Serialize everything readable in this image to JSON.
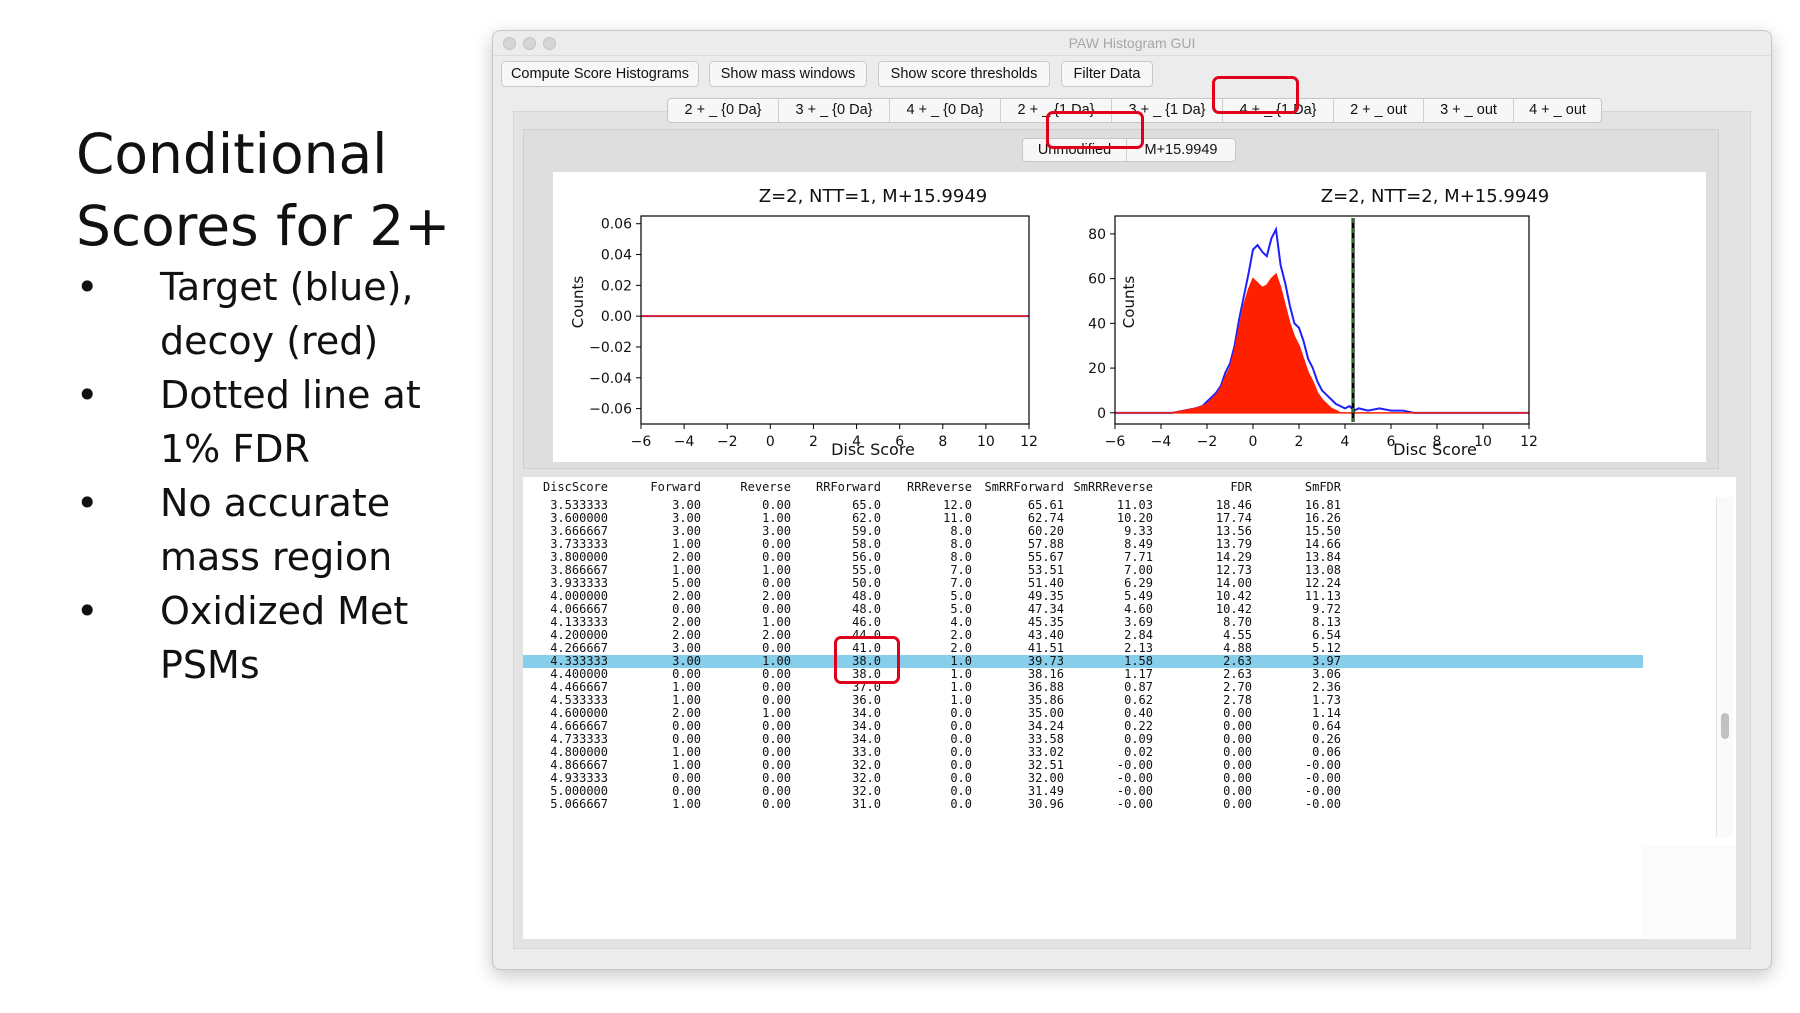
{
  "slide": {
    "title_lines": [
      "Conditional",
      "Scores for 2+"
    ],
    "bullet_symbol": "•",
    "bullets": [
      [
        "Target (blue),",
        "decoy (red)"
      ],
      [
        "Dotted line at",
        "1% FDR"
      ],
      [
        "No accurate",
        "mass region"
      ],
      [
        "Oxidized Met",
        "PSMs"
      ]
    ]
  },
  "window": {
    "title": "PAW Histogram GUI",
    "toolbar": [
      "Compute Score Histograms",
      "Show mass windows",
      "Show score thresholds",
      "Filter Data"
    ],
    "tabs": [
      "2 + _ {0 Da}",
      "3 + _ {0 Da}",
      "4 + _ {0 Da}",
      "2 + _ {1 Da}",
      "3 + _ {1 Da}",
      "4 + _ {1 Da}",
      "2 + _ out",
      "3 + _ out",
      "4 + _ out"
    ],
    "selected_tab": "2 + _ out",
    "subtabs": [
      "Unmodified",
      "M+15.9949"
    ],
    "selected_subtab": "M+15.9949"
  },
  "colors": {
    "target": "#1f1fff",
    "decoy": "#ff2000",
    "threshold": "#2ca02c",
    "highlight": "#e0001b",
    "selected_row": "#87ceeb"
  },
  "chart_data": [
    {
      "type": "line",
      "title": "Z=2, NTT=1, M+15.9949",
      "xlabel": "Disc Score",
      "ylabel": "Counts",
      "xlim": [
        -6,
        12
      ],
      "ylim": [
        -0.07,
        0.065
      ],
      "xticks": [
        "−6",
        "−4",
        "−2",
        "0",
        "2",
        "4",
        "6",
        "8",
        "10",
        "12"
      ],
      "yticks": [
        "0.06",
        "0.04",
        "0.02",
        "0.00",
        "−0.02",
        "−0.04",
        "−0.06"
      ],
      "series": [
        {
          "color": "target",
          "x": [
            -6,
            12
          ],
          "y": [
            0,
            0
          ]
        },
        {
          "color": "decoy",
          "x": [
            -6,
            12
          ],
          "y": [
            0,
            0
          ]
        }
      ]
    },
    {
      "type": "area",
      "title": "Z=2, NTT=2, M+15.9949",
      "xlabel": "Disc Score",
      "ylabel": "Counts",
      "xlim": [
        -6,
        12
      ],
      "ylim": [
        -5,
        88
      ],
      "xticks": [
        "−6",
        "−4",
        "−2",
        "0",
        "2",
        "4",
        "6",
        "8",
        "10",
        "12"
      ],
      "yticks": [
        "80",
        "60",
        "40",
        "20",
        "0"
      ],
      "threshold_x": 4.35,
      "series": [
        {
          "color": "target",
          "x": [
            -6,
            -3.5,
            -3,
            -2.5,
            -2.2,
            -2,
            -1.8,
            -1.6,
            -1.4,
            -1.2,
            -1,
            -0.8,
            -0.6,
            -0.4,
            -0.2,
            0,
            0.2,
            0.4,
            0.6,
            0.8,
            1,
            1.2,
            1.4,
            1.6,
            1.8,
            2,
            2.2,
            2.4,
            2.6,
            2.8,
            3,
            3.2,
            3.4,
            3.6,
            3.8,
            4,
            4.2,
            4.4,
            4.6,
            5,
            5.5,
            6,
            6.5,
            7,
            8,
            12
          ],
          "y": [
            0,
            0,
            1,
            2,
            3,
            5,
            7,
            9,
            12,
            18,
            22,
            30,
            42,
            52,
            62,
            73,
            75,
            72,
            70,
            78,
            82,
            66,
            58,
            48,
            40,
            38,
            32,
            24,
            20,
            14,
            10,
            8,
            6,
            4,
            3,
            2,
            3,
            1,
            2,
            1,
            2,
            1,
            1,
            0,
            0,
            0
          ]
        },
        {
          "color": "decoy",
          "x": [
            -6,
            -3.5,
            -3,
            -2.5,
            -2.2,
            -2,
            -1.8,
            -1.6,
            -1.4,
            -1.2,
            -1,
            -0.8,
            -0.6,
            -0.4,
            -0.2,
            0,
            0.2,
            0.4,
            0.6,
            0.8,
            1,
            1.2,
            1.4,
            1.6,
            1.8,
            2,
            2.2,
            2.4,
            2.6,
            2.8,
            3,
            3.2,
            3.4,
            3.6,
            3.8,
            4,
            12
          ],
          "y": [
            0,
            0,
            1,
            2,
            3,
            4,
            6,
            8,
            11,
            16,
            20,
            28,
            38,
            48,
            55,
            60,
            58,
            56,
            57,
            60,
            62,
            56,
            48,
            40,
            34,
            30,
            24,
            18,
            14,
            9,
            6,
            4,
            2,
            1,
            0,
            0,
            0
          ]
        }
      ]
    }
  ],
  "table": {
    "columns": [
      "DiscScore",
      "Forward",
      "Reverse",
      "RRForward",
      "RRReverse",
      "SmRRForward",
      "SmRRReverse",
      "FDR",
      "SmFDR"
    ],
    "rows": [
      [
        "3.533333",
        "3.00",
        "0.00",
        "65.0",
        "12.0",
        "65.61",
        "11.03",
        "18.46",
        "16.81"
      ],
      [
        "3.600000",
        "3.00",
        "1.00",
        "62.0",
        "11.0",
        "62.74",
        "10.20",
        "17.74",
        "16.26"
      ],
      [
        "3.666667",
        "3.00",
        "3.00",
        "59.0",
        "8.0",
        "60.20",
        "9.33",
        "13.56",
        "15.50"
      ],
      [
        "3.733333",
        "1.00",
        "0.00",
        "58.0",
        "8.0",
        "57.88",
        "8.49",
        "13.79",
        "14.66"
      ],
      [
        "3.800000",
        "2.00",
        "0.00",
        "56.0",
        "8.0",
        "55.67",
        "7.71",
        "14.29",
        "13.84"
      ],
      [
        "3.866667",
        "1.00",
        "1.00",
        "55.0",
        "7.0",
        "53.51",
        "7.00",
        "12.73",
        "13.08"
      ],
      [
        "3.933333",
        "5.00",
        "0.00",
        "50.0",
        "7.0",
        "51.40",
        "6.29",
        "14.00",
        "12.24"
      ],
      [
        "4.000000",
        "2.00",
        "2.00",
        "48.0",
        "5.0",
        "49.35",
        "5.49",
        "10.42",
        "11.13"
      ],
      [
        "4.066667",
        "0.00",
        "0.00",
        "48.0",
        "5.0",
        "47.34",
        "4.60",
        "10.42",
        "9.72"
      ],
      [
        "4.133333",
        "2.00",
        "1.00",
        "46.0",
        "4.0",
        "45.35",
        "3.69",
        "8.70",
        "8.13"
      ],
      [
        "4.200000",
        "2.00",
        "2.00",
        "44.0",
        "2.0",
        "43.40",
        "2.84",
        "4.55",
        "6.54"
      ],
      [
        "4.266667",
        "3.00",
        "0.00",
        "41.0",
        "2.0",
        "41.51",
        "2.13",
        "4.88",
        "5.12"
      ],
      [
        "4.333333",
        "3.00",
        "1.00",
        "38.0",
        "1.0",
        "39.73",
        "1.58",
        "2.63",
        "3.97"
      ],
      [
        "4.400000",
        "0.00",
        "0.00",
        "38.0",
        "1.0",
        "38.16",
        "1.17",
        "2.63",
        "3.06"
      ],
      [
        "4.466667",
        "1.00",
        "0.00",
        "37.0",
        "1.0",
        "36.88",
        "0.87",
        "2.70",
        "2.36"
      ],
      [
        "4.533333",
        "1.00",
        "0.00",
        "36.0",
        "1.0",
        "35.86",
        "0.62",
        "2.78",
        "1.73"
      ],
      [
        "4.600000",
        "2.00",
        "1.00",
        "34.0",
        "0.0",
        "35.00",
        "0.40",
        "0.00",
        "1.14"
      ],
      [
        "4.666667",
        "0.00",
        "0.00",
        "34.0",
        "0.0",
        "34.24",
        "0.22",
        "0.00",
        "0.64"
      ],
      [
        "4.733333",
        "0.00",
        "0.00",
        "34.0",
        "0.0",
        "33.58",
        "0.09",
        "0.00",
        "0.26"
      ],
      [
        "4.800000",
        "1.00",
        "0.00",
        "33.0",
        "0.0",
        "33.02",
        "0.02",
        "0.00",
        "0.06"
      ],
      [
        "4.866667",
        "1.00",
        "0.00",
        "32.0",
        "0.0",
        "32.51",
        "-0.00",
        "0.00",
        "-0.00"
      ],
      [
        "4.933333",
        "0.00",
        "0.00",
        "32.0",
        "0.0",
        "32.00",
        "-0.00",
        "0.00",
        "-0.00"
      ],
      [
        "5.000000",
        "0.00",
        "0.00",
        "32.0",
        "0.0",
        "31.49",
        "-0.00",
        "0.00",
        "-0.00"
      ],
      [
        "5.066667",
        "1.00",
        "0.00",
        "31.0",
        "0.0",
        "30.96",
        "-0.00",
        "0.00",
        "-0.00"
      ]
    ],
    "selected_row_index": 12
  }
}
